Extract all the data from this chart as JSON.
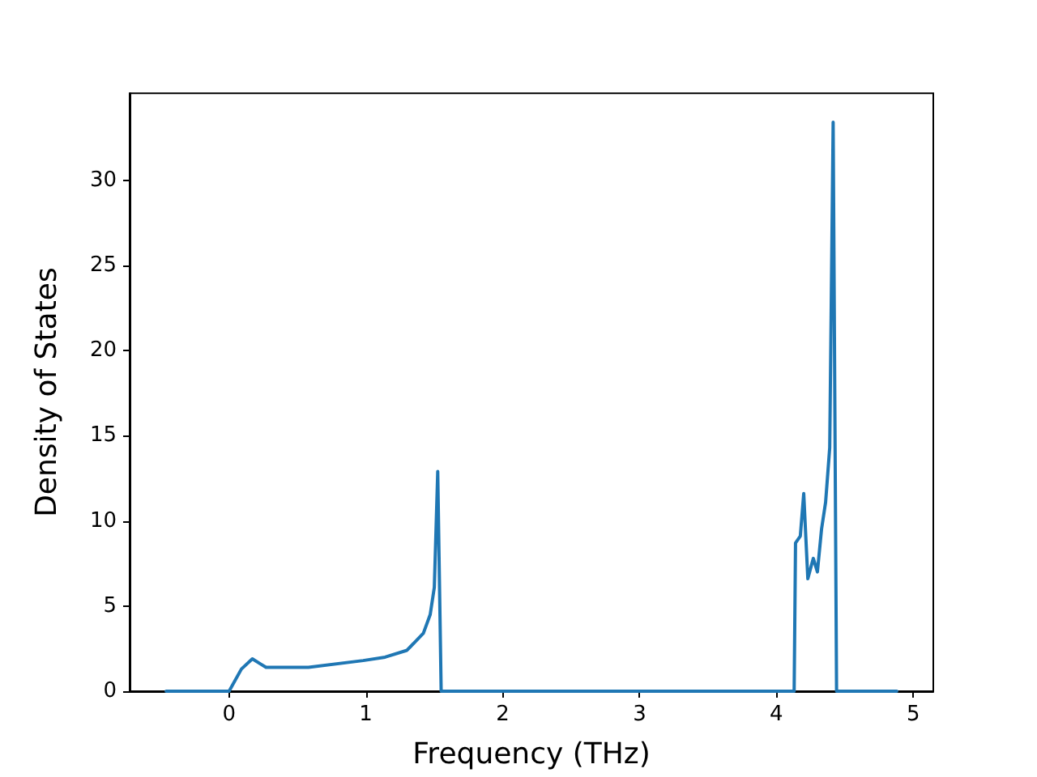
{
  "chart_data": {
    "type": "line",
    "xlabel": "Frequency (THz)",
    "ylabel": "Density of States",
    "x": [
      -0.46,
      0,
      0.09,
      0.17,
      0.23,
      0.27,
      0.58,
      0.98,
      1.14,
      1.3,
      1.42,
      1.47,
      1.5,
      1.525,
      1.55,
      4.13,
      4.14,
      4.175,
      4.2,
      4.23,
      4.27,
      4.3,
      4.33,
      4.36,
      4.39,
      4.415,
      4.44,
      4.88
    ],
    "series": [
      {
        "color": "#1f77b4",
        "values": [
          0,
          0,
          1.3,
          1.9,
          1.6,
          1.4,
          1.4,
          1.8,
          2.0,
          2.4,
          3.4,
          4.5,
          6.1,
          12.9,
          0,
          0,
          8.7,
          9.1,
          11.6,
          6.6,
          7.8,
          7.0,
          9.5,
          11.1,
          14.3,
          33.4,
          0,
          0
        ]
      }
    ],
    "xlim": [
      -0.727,
      5.147
    ],
    "ylim": [
      0,
      35.1
    ],
    "xticks": [
      0,
      1,
      2,
      3,
      4,
      5
    ],
    "yticks": [
      0,
      5,
      10,
      15,
      20,
      25,
      30
    ],
    "grid": false,
    "marker": "none",
    "line_style": "solid"
  }
}
